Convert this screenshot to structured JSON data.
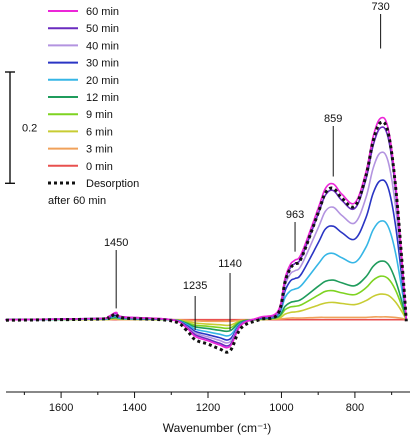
{
  "chart_data": {
    "type": "line",
    "xlabel": "Wavenumber (cm⁻¹)",
    "ylabel": "",
    "xlim": [
      1750,
      650
    ],
    "ylim": [
      -0.13,
      0.56
    ],
    "x_ticks": [
      1600,
      1400,
      1200,
      1000,
      800
    ],
    "x_tick_labels": [
      "1600",
      "1400",
      "1200",
      "1000",
      "800"
    ],
    "grid": false,
    "legend_position": "top-left",
    "scale_bar": {
      "label": "0.2",
      "value": 0.2,
      "from": 0.245,
      "to": 0.445
    },
    "annotations": [
      {
        "label": "1450",
        "x": 1450,
        "y": 0.013
      },
      {
        "label": "1235",
        "x": 1235,
        "y": -0.022
      },
      {
        "label": "1140",
        "x": 1140,
        "y": -0.022
      },
      {
        "label": "963",
        "x": 963,
        "y": 0.115
      },
      {
        "label": "859",
        "x": 859,
        "y": 0.25
      },
      {
        "label": "730",
        "x": 730,
        "y": 0.48
      }
    ],
    "x": [
      1750,
      1500,
      1470,
      1450,
      1430,
      1300,
      1260,
      1235,
      1200,
      1170,
      1140,
      1110,
      1060,
      1010,
      990,
      975,
      963,
      945,
      900,
      880,
      859,
      835,
      800,
      770,
      750,
      730,
      710,
      690,
      670,
      660
    ],
    "series": [
      {
        "name": "60 min",
        "color": "#ec26d8",
        "style": "solid",
        "values": [
          0.0,
          0.002,
          0.006,
          0.013,
          0.005,
          0.0,
          -0.014,
          -0.03,
          -0.038,
          -0.045,
          -0.048,
          -0.01,
          0.004,
          0.015,
          0.075,
          0.1,
          0.107,
          0.12,
          0.2,
          0.236,
          0.244,
          0.225,
          0.21,
          0.265,
          0.33,
          0.362,
          0.345,
          0.25,
          0.09,
          0.0
        ]
      },
      {
        "name": "50 min",
        "color": "#6a2bbf",
        "style": "solid",
        "values": [
          0.0,
          0.002,
          0.005,
          0.012,
          0.005,
          0.0,
          -0.013,
          -0.027,
          -0.035,
          -0.042,
          -0.045,
          -0.009,
          0.003,
          0.014,
          0.07,
          0.094,
          0.101,
          0.113,
          0.19,
          0.224,
          0.232,
          0.214,
          0.2,
          0.252,
          0.314,
          0.345,
          0.328,
          0.238,
          0.085,
          0.0
        ]
      },
      {
        "name": "40 min",
        "color": "#b394e0",
        "style": "solid",
        "values": [
          0.0,
          0.002,
          0.005,
          0.01,
          0.004,
          0.0,
          -0.012,
          -0.024,
          -0.031,
          -0.037,
          -0.04,
          -0.008,
          0.003,
          0.012,
          0.062,
          0.083,
          0.088,
          0.099,
          0.165,
          0.195,
          0.202,
          0.187,
          0.174,
          0.219,
          0.273,
          0.3,
          0.285,
          0.207,
          0.075,
          0.0
        ]
      },
      {
        "name": "30 min",
        "color": "#2a35c4",
        "style": "solid",
        "values": [
          0.0,
          0.002,
          0.004,
          0.008,
          0.003,
          0.0,
          -0.01,
          -0.021,
          -0.027,
          -0.032,
          -0.035,
          -0.007,
          0.002,
          0.01,
          0.052,
          0.07,
          0.074,
          0.083,
          0.138,
          0.163,
          0.168,
          0.156,
          0.145,
          0.183,
          0.228,
          0.25,
          0.238,
          0.172,
          0.062,
          0.0
        ]
      },
      {
        "name": "20 min",
        "color": "#36b6e6",
        "style": "solid",
        "values": [
          0.0,
          0.001,
          0.003,
          0.006,
          0.002,
          0.0,
          -0.008,
          -0.017,
          -0.022,
          -0.026,
          -0.028,
          -0.006,
          0.002,
          0.008,
          0.04,
          0.052,
          0.055,
          0.062,
          0.1,
          0.116,
          0.119,
          0.111,
          0.103,
          0.13,
          0.162,
          0.177,
          0.168,
          0.122,
          0.045,
          0.0
        ]
      },
      {
        "name": "12 min",
        "color": "#1f9c5c",
        "style": "solid",
        "values": [
          0.0,
          0.001,
          0.002,
          0.004,
          0.002,
          0.0,
          -0.006,
          -0.013,
          -0.016,
          -0.019,
          -0.02,
          -0.004,
          0.001,
          0.005,
          0.024,
          0.031,
          0.033,
          0.037,
          0.06,
          0.069,
          0.071,
          0.066,
          0.061,
          0.077,
          0.096,
          0.105,
          0.1,
          0.072,
          0.027,
          0.0
        ]
      },
      {
        "name": "9 min",
        "color": "#7ed321",
        "style": "solid",
        "values": [
          0.0,
          0.001,
          0.002,
          0.003,
          0.001,
          0.0,
          -0.005,
          -0.01,
          -0.012,
          -0.014,
          -0.015,
          -0.003,
          0.001,
          0.004,
          0.018,
          0.023,
          0.024,
          0.027,
          0.044,
          0.051,
          0.052,
          0.048,
          0.045,
          0.057,
          0.071,
          0.078,
          0.074,
          0.054,
          0.02,
          0.0
        ]
      },
      {
        "name": "6 min",
        "color": "#c8cc33",
        "style": "solid",
        "values": [
          0.0,
          0.0,
          0.001,
          0.002,
          0.001,
          0.0,
          -0.003,
          -0.006,
          -0.008,
          -0.009,
          -0.01,
          -0.002,
          0.0,
          0.002,
          0.01,
          0.013,
          0.014,
          0.016,
          0.026,
          0.03,
          0.031,
          0.029,
          0.027,
          0.034,
          0.042,
          0.046,
          0.044,
          0.032,
          0.012,
          0.0
        ]
      },
      {
        "name": "3 min",
        "color": "#f0a15a",
        "style": "solid",
        "values": [
          0.0,
          0.0,
          0.0,
          0.001,
          0.0,
          0.0,
          -0.001,
          -0.002,
          -0.003,
          -0.003,
          -0.003,
          -0.001,
          0.0,
          0.001,
          0.002,
          0.003,
          0.003,
          0.003,
          0.004,
          0.004,
          0.004,
          0.004,
          0.004,
          0.004,
          0.005,
          0.005,
          0.005,
          0.004,
          0.002,
          0.0
        ]
      },
      {
        "name": "0 min",
        "color": "#e8504f",
        "style": "solid",
        "values": [
          0.0,
          0.0,
          0.0,
          0.0,
          0.0,
          0.0,
          0.0,
          0.0,
          0.0,
          0.0,
          0.0,
          0.0,
          0.0,
          0.0,
          0.0,
          0.0,
          0.0,
          0.0,
          0.0,
          0.0,
          0.0,
          0.0,
          0.0,
          0.0,
          0.0,
          0.0,
          0.0,
          0.0,
          0.0,
          0.0
        ]
      },
      {
        "name": "Desorption after 60 min",
        "legend_lines": [
          "Desorption",
          "after 60 min"
        ],
        "color": "#111111",
        "style": "dotted",
        "values": [
          -0.001,
          0.001,
          0.004,
          0.01,
          0.003,
          -0.002,
          -0.018,
          -0.036,
          -0.044,
          -0.052,
          -0.056,
          -0.015,
          0.0,
          0.01,
          0.068,
          0.093,
          0.1,
          0.112,
          0.192,
          0.228,
          0.236,
          0.218,
          0.204,
          0.258,
          0.322,
          0.354,
          0.337,
          0.244,
          0.087,
          -0.003
        ]
      }
    ]
  }
}
